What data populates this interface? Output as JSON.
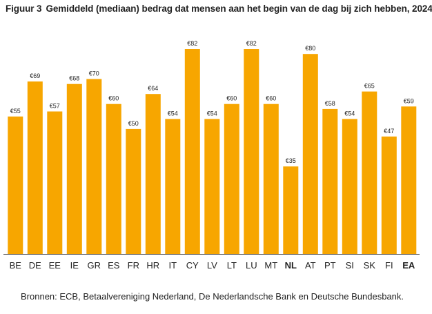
{
  "figure": {
    "label": "Figuur 3",
    "title": "Gemiddeld (mediaan) bedrag dat mensen aan het begin van de dag bij zich hebben, 2024"
  },
  "source": "Bronnen: ECB, Betaalvereniging Nederland, De Nederlandsche Bank en Deutsche Bundesbank.",
  "colors": {
    "bar": "#F7A600",
    "axis": "#555555",
    "text": "#222222"
  },
  "chart_data": {
    "type": "bar",
    "title": "",
    "xlabel": "",
    "ylabel": "",
    "ylim": [
      0,
      82
    ],
    "grid": false,
    "legend": false,
    "value_prefix": "€",
    "bold_categories": [
      "NL",
      "EA"
    ],
    "categories": [
      "BE",
      "DE",
      "EE",
      "IE",
      "GR",
      "ES",
      "FR",
      "HR",
      "IT",
      "CY",
      "LV",
      "LT",
      "LU",
      "MT",
      "NL",
      "AT",
      "PT",
      "SI",
      "SK",
      "FI",
      "EA"
    ],
    "values": [
      55,
      69,
      57,
      68,
      70,
      60,
      50,
      64,
      54,
      82,
      54,
      60,
      82,
      60,
      35,
      80,
      58,
      54,
      65,
      47,
      59
    ]
  }
}
